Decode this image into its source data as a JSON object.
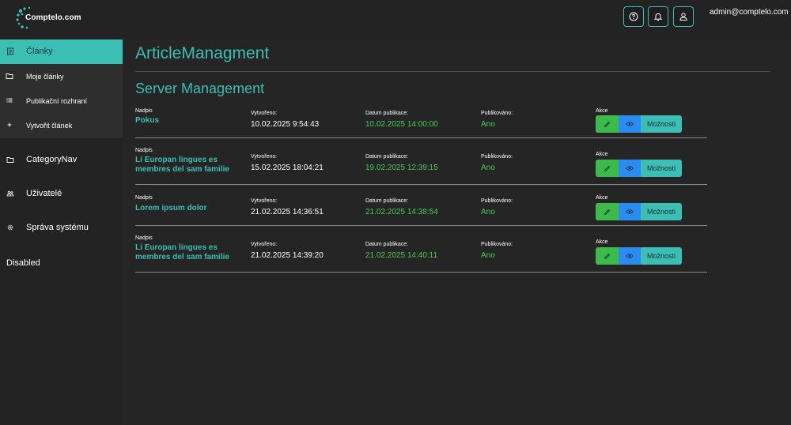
{
  "app": {
    "logo_text": "Comptelo.com",
    "user_email": "admin@comptelo.com",
    "accent_color": "#3bbfb5"
  },
  "header_icons": [
    "help-icon",
    "bell-icon",
    "user-icon"
  ],
  "sidebar": {
    "active": {
      "label": "Články",
      "icon": "document-icon"
    },
    "subitems": [
      {
        "label": "Moje články",
        "icon": "folder-icon"
      },
      {
        "label": "Publikační rozhraní",
        "icon": "list-icon"
      },
      {
        "label": "Vytvořit článek",
        "icon": "plus-icon"
      }
    ],
    "items": [
      {
        "label": "CategoryNav",
        "icon": "folder-icon"
      },
      {
        "label": "Uživatelé",
        "icon": "users-icon"
      },
      {
        "label": "Správa systému",
        "icon": "gear-icon"
      }
    ],
    "disabled_label": "Disabled"
  },
  "main": {
    "title": "ArticleManagment",
    "section_title": "Server Management",
    "labels": {
      "title": "Nadpis",
      "created": "Vytvořeno:",
      "published_date": "Datum publikace:",
      "published": "Publikováno:",
      "actions": "Akce",
      "options_button": "Možnosti"
    },
    "articles": [
      {
        "title": "Pokus",
        "created": "10.02.2025 9:54:43",
        "published_date": "10.02.2025 14:00:00",
        "published": "Ano"
      },
      {
        "title": "Li Europan lingues es membres del sam familie",
        "created": "15.02.2025 18:04:21",
        "published_date": "19.02.2025 12:39:15",
        "published": "Ano"
      },
      {
        "title": "Lorem ipsum dolor",
        "created": "21.02.2025 14:36:51",
        "published_date": "21.02.2025 14:38:54",
        "published": "Ano"
      },
      {
        "title": "Li Europan lingues es membres del sam familie",
        "created": "21.02.2025 14:39:20",
        "published_date": "21.02.2025 14:40:11",
        "published": "Ano"
      }
    ]
  }
}
